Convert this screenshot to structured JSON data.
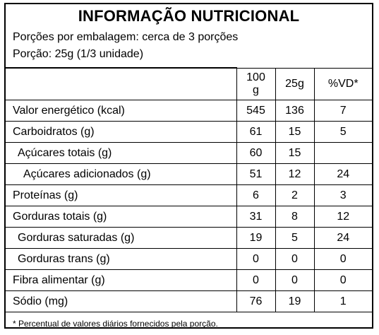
{
  "label": {
    "title": "INFORMAÇÃO NUTRICIONAL",
    "servings_per_package": "Porções por embalagem: cerca de 3 porções",
    "serving_size": "Porção: 25g (1/3 unidade)",
    "headers": {
      "per100_line1": "100",
      "per100_line2": "g",
      "per_serving": "25g",
      "dv": "%VD*"
    },
    "rows": [
      {
        "name": "Valor energético (kcal)",
        "per100": "545",
        "serving": "136",
        "dv": "7"
      },
      {
        "name": "Carboidratos (g)",
        "per100": "61",
        "serving": "15",
        "dv": "5"
      },
      {
        "name": "Açúcares totais (g)",
        "per100": "60",
        "serving": "15",
        "dv": ""
      },
      {
        "name": "Açúcares adicionados (g)",
        "per100": "51",
        "serving": "12",
        "dv": "24"
      },
      {
        "name": "Proteínas (g)",
        "per100": "6",
        "serving": "2",
        "dv": "3"
      },
      {
        "name": "Gorduras totais (g)",
        "per100": "31",
        "serving": "8",
        "dv": "12"
      },
      {
        "name": "Gorduras saturadas (g)",
        "per100": "19",
        "serving": "5",
        "dv": "24"
      },
      {
        "name": "Gorduras trans (g)",
        "per100": "0",
        "serving": "0",
        "dv": "0"
      },
      {
        "name": "Fibra alimentar (g)",
        "per100": "0",
        "serving": "0",
        "dv": "0"
      },
      {
        "name": "Sódio (mg)",
        "per100": "76",
        "serving": "19",
        "dv": "1"
      }
    ],
    "footnote": "* Percentual de valores diários fornecidos pela porção."
  }
}
